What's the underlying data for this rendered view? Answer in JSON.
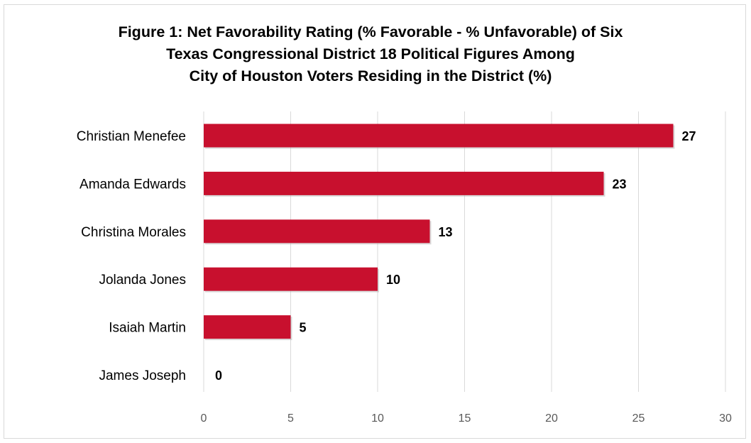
{
  "chart_data": {
    "type": "bar",
    "orientation": "horizontal",
    "title": "Figure 1: Net Favorability Rating (% Favorable - % Unfavorable) of Six\nTexas Congressional District 18 Political Figures Among\nCity of Houston Voters Residing in the District (%)",
    "categories": [
      "Christian Menefee",
      "Amanda Edwards",
      "Christina Morales",
      "Jolanda Jones",
      "Isaiah Martin",
      "James Joseph"
    ],
    "values": [
      27,
      23,
      13,
      10,
      5,
      0
    ],
    "data_labels": [
      "27",
      "23",
      "13",
      "10",
      "5",
      "0"
    ],
    "xlim": [
      0,
      30
    ],
    "x_ticks": [
      0,
      5,
      10,
      15,
      20,
      25,
      30
    ],
    "x_tick_labels": [
      "0",
      "5",
      "10",
      "15",
      "20",
      "25",
      "30"
    ],
    "grid": "vertical",
    "legend": "none",
    "bar_color": "#c8102e"
  }
}
